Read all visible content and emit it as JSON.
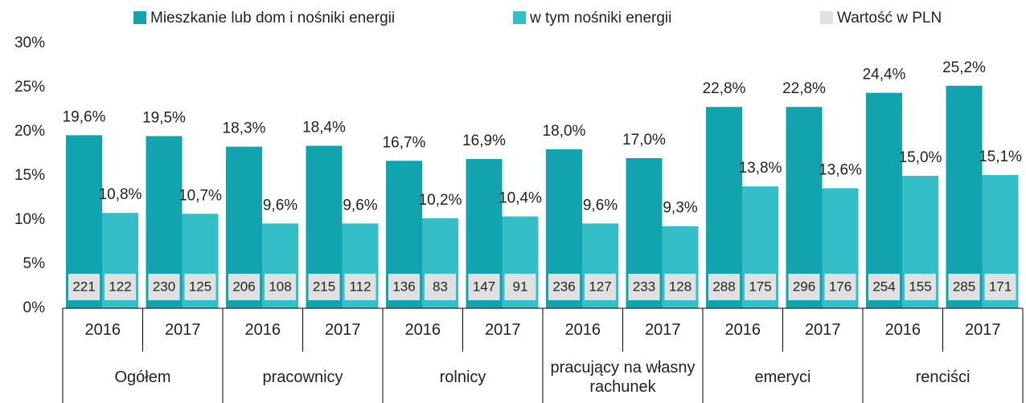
{
  "chart_data": {
    "type": "bar",
    "categories": [
      "2016",
      "2017",
      "2016",
      "2017",
      "2016",
      "2017",
      "2016",
      "2017",
      "2016",
      "2017",
      "2016",
      "2017"
    ],
    "groups": [
      "Ogółem",
      "pracownicy",
      "rolnicy",
      "pracujący na własny rachunek",
      "emeryci",
      "renciści"
    ],
    "series": [
      {
        "name": "Mieszkanie lub dom i nośniki energii",
        "color": "#12a4ae",
        "values": [
          19.6,
          19.5,
          18.3,
          18.4,
          16.7,
          16.9,
          18.0,
          17.0,
          22.8,
          22.8,
          24.4,
          25.2
        ],
        "value_labels": [
          "19,6%",
          "19,5%",
          "18,3%",
          "18,4%",
          "16,7%",
          "16,9%",
          "18,0%",
          "17,0%",
          "22,8%",
          "22,8%",
          "24,4%",
          "25,2%"
        ]
      },
      {
        "name": "w tym nośniki energii",
        "color": "#34bec8",
        "values": [
          10.8,
          10.7,
          9.6,
          9.6,
          10.2,
          10.4,
          9.6,
          9.3,
          13.8,
          13.6,
          15.0,
          15.1
        ],
        "value_labels": [
          "10,8%",
          "10,7%",
          "9,6%",
          "9,6%",
          "10,2%",
          "10,4%",
          "9,6%",
          "9,3%",
          "13,8%",
          "13,6%",
          "15,0%",
          "15,1%"
        ]
      }
    ],
    "pln": {
      "name": "Wartość w PLN",
      "color": "#e0e0e0",
      "values": [
        [
          221,
          230,
          206,
          215,
          136,
          147,
          236,
          233,
          288,
          296,
          254,
          285
        ],
        [
          122,
          125,
          108,
          112,
          83,
          91,
          127,
          128,
          175,
          176,
          155,
          171
        ]
      ]
    },
    "ylim": [
      0,
      30
    ],
    "yticks": [
      {
        "value": 0,
        "label": "0%"
      },
      {
        "value": 5,
        "label": "5%"
      },
      {
        "value": 10,
        "label": "10%"
      },
      {
        "value": 15,
        "label": "15%"
      },
      {
        "value": 20,
        "label": "20%"
      },
      {
        "value": 25,
        "label": "25%"
      },
      {
        "value": 30,
        "label": "30%"
      }
    ],
    "legend": "top"
  }
}
